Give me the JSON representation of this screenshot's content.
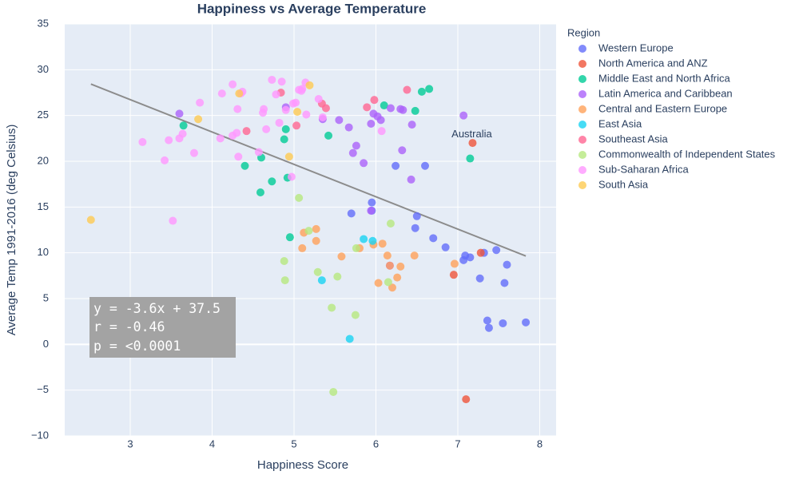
{
  "chart_data": {
    "type": "scatter",
    "title": "Happiness vs Average Temperature",
    "xlabel": "Happiness Score",
    "ylabel": "Average Temp 1991-2016 (deg Celsius)",
    "xlim": [
      2.2,
      8.2
    ],
    "ylim": [
      -10,
      35
    ],
    "x_ticks": [
      3,
      4,
      5,
      6,
      7,
      8
    ],
    "y_ticks": [
      -10,
      -5,
      0,
      5,
      10,
      15,
      20,
      25,
      30,
      35
    ],
    "grid": true,
    "legend": {
      "title": "Region",
      "placement": "right"
    },
    "trendline": {
      "x": [
        2.52,
        7.83
      ],
      "y": [
        28.43,
        9.65
      ],
      "color": "#8c8c8c"
    },
    "annotations": [
      {
        "text": "Australia",
        "x": 7.18,
        "y": 22.9
      }
    ],
    "stats_box": {
      "lines": [
        "y = -3.6x + 37.5",
        "r = -0.46",
        "p = <0.0001"
      ]
    },
    "series": [
      {
        "name": "Western Europe",
        "color": "#636efa",
        "points": [
          [
            5.7,
            14.3
          ],
          [
            5.95,
            15.5
          ],
          [
            5.95,
            14.6
          ],
          [
            6.5,
            14.0
          ],
          [
            6.48,
            12.7
          ],
          [
            6.7,
            11.6
          ],
          [
            6.85,
            10.6
          ],
          [
            7.07,
            9.2
          ],
          [
            7.09,
            9.7
          ],
          [
            7.15,
            9.5
          ],
          [
            7.32,
            10.0
          ],
          [
            7.47,
            10.3
          ],
          [
            7.6,
            8.7
          ],
          [
            7.27,
            7.2
          ],
          [
            7.57,
            6.7
          ],
          [
            7.36,
            2.6
          ],
          [
            7.38,
            1.8
          ],
          [
            7.55,
            2.3
          ],
          [
            7.83,
            2.4
          ],
          [
            6.6,
            19.5
          ],
          [
            6.24,
            19.5
          ]
        ]
      },
      {
        "name": "North America and ANZ",
        "color": "#ef553b",
        "points": [
          [
            7.18,
            22.0
          ],
          [
            6.95,
            7.6
          ],
          [
            7.28,
            10.0
          ],
          [
            7.1,
            -6.0
          ]
        ]
      },
      {
        "name": "Middle East and North Africa",
        "color": "#00cc96",
        "points": [
          [
            3.65,
            23.9
          ],
          [
            4.4,
            19.5
          ],
          [
            4.6,
            20.4
          ],
          [
            4.59,
            16.6
          ],
          [
            4.73,
            17.8
          ],
          [
            4.88,
            22.4
          ],
          [
            4.9,
            23.5
          ],
          [
            4.92,
            18.2
          ],
          [
            4.95,
            11.7
          ],
          [
            5.42,
            22.8
          ],
          [
            6.1,
            26.1
          ],
          [
            6.48,
            25.5
          ],
          [
            6.56,
            27.6
          ],
          [
            6.65,
            27.9
          ],
          [
            7.15,
            20.3
          ]
        ]
      },
      {
        "name": "Latin America and Caribbean",
        "color": "#ab63fa",
        "points": [
          [
            3.6,
            25.2
          ],
          [
            4.9,
            25.9
          ],
          [
            5.35,
            24.6
          ],
          [
            5.55,
            24.5
          ],
          [
            5.67,
            23.7
          ],
          [
            5.72,
            20.9
          ],
          [
            5.76,
            21.7
          ],
          [
            5.85,
            19.8
          ],
          [
            5.94,
            24.1
          ],
          [
            5.97,
            25.2
          ],
          [
            6.02,
            24.9
          ],
          [
            6.06,
            24.5
          ],
          [
            6.18,
            25.8
          ],
          [
            6.3,
            25.7
          ],
          [
            6.33,
            25.6
          ],
          [
            6.32,
            21.2
          ],
          [
            6.44,
            24.0
          ],
          [
            6.43,
            18.0
          ],
          [
            7.07,
            25.0
          ],
          [
            5.94,
            14.6
          ],
          [
            6.17,
            8.6
          ]
        ]
      },
      {
        "name": "Central and Eastern Europe",
        "color": "#ffa15a",
        "points": [
          [
            5.1,
            10.5
          ],
          [
            5.12,
            12.2
          ],
          [
            5.27,
            11.3
          ],
          [
            5.27,
            12.6
          ],
          [
            5.58,
            9.6
          ],
          [
            5.8,
            10.5
          ],
          [
            5.97,
            10.9
          ],
          [
            6.08,
            11.0
          ],
          [
            6.14,
            9.7
          ],
          [
            6.17,
            8.6
          ],
          [
            6.2,
            6.2
          ],
          [
            6.26,
            7.3
          ],
          [
            6.3,
            8.5
          ],
          [
            6.03,
            6.7
          ],
          [
            6.47,
            9.7
          ],
          [
            6.96,
            8.8
          ]
        ]
      },
      {
        "name": "East Asia",
        "color": "#19d3f3",
        "points": [
          [
            5.34,
            7.0
          ],
          [
            5.68,
            0.6
          ],
          [
            5.85,
            11.5
          ],
          [
            5.96,
            11.3
          ]
        ]
      },
      {
        "name": "Southeast Asia",
        "color": "#ff6692",
        "points": [
          [
            4.42,
            23.3
          ],
          [
            4.84,
            27.5
          ],
          [
            5.03,
            23.9
          ],
          [
            5.34,
            26.3
          ],
          [
            5.39,
            25.8
          ],
          [
            5.89,
            25.9
          ],
          [
            5.98,
            26.7
          ],
          [
            6.38,
            27.8
          ]
        ]
      },
      {
        "name": "Commonwealth of Independent States",
        "color": "#b6e880",
        "points": [
          [
            4.88,
            9.1
          ],
          [
            4.89,
            7.0
          ],
          [
            5.06,
            16.0
          ],
          [
            5.18,
            12.4
          ],
          [
            5.29,
            7.9
          ],
          [
            5.46,
            4.0
          ],
          [
            5.48,
            -5.2
          ],
          [
            5.53,
            7.4
          ],
          [
            5.75,
            3.2
          ],
          [
            5.76,
            10.5
          ],
          [
            6.15,
            6.8
          ],
          [
            6.18,
            13.2
          ]
        ]
      },
      {
        "name": "Sub-Saharan Africa",
        "color": "#ff97ff",
        "points": [
          [
            3.15,
            22.1
          ],
          [
            3.42,
            20.1
          ],
          [
            3.47,
            22.3
          ],
          [
            3.52,
            13.5
          ],
          [
            3.6,
            22.5
          ],
          [
            3.64,
            23.0
          ],
          [
            3.78,
            20.9
          ],
          [
            3.85,
            26.4
          ],
          [
            4.1,
            22.5
          ],
          [
            4.12,
            27.4
          ],
          [
            4.25,
            28.4
          ],
          [
            4.25,
            22.8
          ],
          [
            4.3,
            23.1
          ],
          [
            4.31,
            25.7
          ],
          [
            4.32,
            20.5
          ],
          [
            4.35,
            27.4
          ],
          [
            4.37,
            27.6
          ],
          [
            4.57,
            21.0
          ],
          [
            4.62,
            25.3
          ],
          [
            4.63,
            25.7
          ],
          [
            4.66,
            23.5
          ],
          [
            4.73,
            28.9
          ],
          [
            4.78,
            27.3
          ],
          [
            4.82,
            24.2
          ],
          [
            4.85,
            28.7
          ],
          [
            4.9,
            25.6
          ],
          [
            4.97,
            18.3
          ],
          [
            4.99,
            26.3
          ],
          [
            5.02,
            26.4
          ],
          [
            5.06,
            27.8
          ],
          [
            5.09,
            27.7
          ],
          [
            5.1,
            27.9
          ],
          [
            5.14,
            28.6
          ],
          [
            5.15,
            25.1
          ],
          [
            5.3,
            26.8
          ],
          [
            5.35,
            24.8
          ],
          [
            6.07,
            23.3
          ]
        ]
      },
      {
        "name": "South Asia",
        "color": "#fecb52",
        "points": [
          [
            2.52,
            13.6
          ],
          [
            3.83,
            24.6
          ],
          [
            4.33,
            27.4
          ],
          [
            4.94,
            20.5
          ],
          [
            5.04,
            25.4
          ],
          [
            5.19,
            28.3
          ]
        ]
      }
    ]
  }
}
